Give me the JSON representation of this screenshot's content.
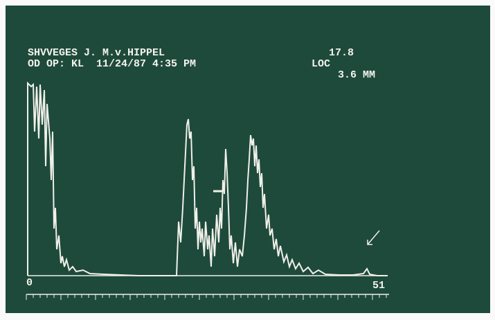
{
  "header": {
    "patient": "SHVVEGES J. M.v.HIPPEL",
    "reading": "17.8",
    "session": "OD OP: KL  11/24/87 4:35 PM",
    "loc_label": "LOC",
    "loc_value": "3.6 MM"
  },
  "scale": {
    "start": "0",
    "end": "51"
  }
}
